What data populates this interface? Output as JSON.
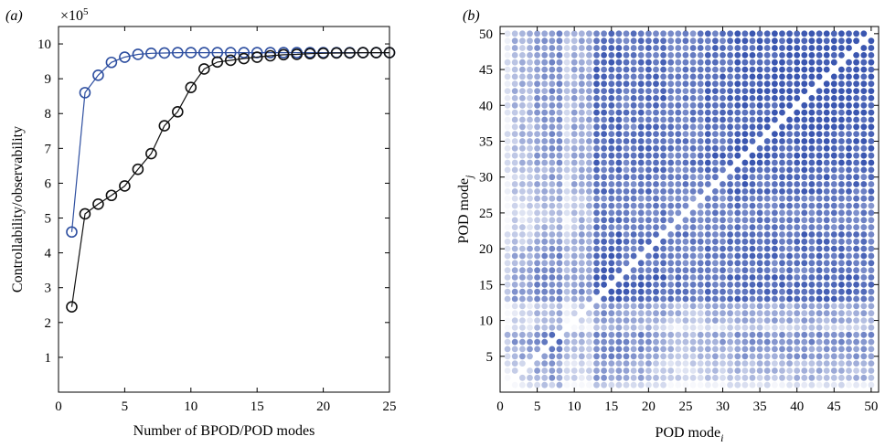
{
  "chart_data": [
    {
      "type": "line",
      "panel_label": "(a)",
      "exponent_label": "×10",
      "exponent_power": "5",
      "xlabel": "Number of BPOD/POD modes",
      "ylabel": "Controllability/observability",
      "xlim": [
        0,
        25
      ],
      "ylim": [
        0,
        10.5
      ],
      "xticks": [
        "0",
        "5",
        "10",
        "15",
        "20",
        "25"
      ],
      "xtick_values": [
        0,
        5,
        10,
        15,
        20,
        25
      ],
      "yticks": [
        "1",
        "2",
        "3",
        "4",
        "5",
        "6",
        "7",
        "8",
        "9",
        "10"
      ],
      "ytick_values": [
        1,
        2,
        3,
        4,
        5,
        6,
        7,
        8,
        9,
        10
      ],
      "grid": false,
      "series": [
        {
          "color": "#2e4fa0",
          "x": [
            1,
            2,
            3,
            4,
            5,
            6,
            7,
            8,
            9,
            10,
            11,
            12,
            13,
            14,
            15,
            16,
            17,
            18,
            19,
            20,
            21,
            22,
            23,
            24,
            25
          ],
          "y": [
            4.6,
            8.6,
            9.1,
            9.47,
            9.62,
            9.7,
            9.73,
            9.74,
            9.75,
            9.75,
            9.75,
            9.75,
            9.75,
            9.75,
            9.75,
            9.75,
            9.75,
            9.75,
            9.75,
            9.75,
            9.75,
            9.75,
            9.75,
            9.75,
            9.75
          ]
        },
        {
          "color": "#111111",
          "x": [
            1,
            2,
            3,
            4,
            5,
            6,
            7,
            8,
            9,
            10,
            11,
            12,
            13,
            14,
            15,
            16,
            17,
            18,
            19,
            20,
            21,
            22,
            23,
            24,
            25
          ],
          "y": [
            2.45,
            5.12,
            5.4,
            5.65,
            5.92,
            6.4,
            6.85,
            7.65,
            8.05,
            8.75,
            9.28,
            9.48,
            9.53,
            9.58,
            9.62,
            9.66,
            9.69,
            9.7,
            9.72,
            9.73,
            9.74,
            9.74,
            9.75,
            9.75,
            9.75
          ]
        }
      ]
    },
    {
      "type": "heatmap",
      "panel_label": "(b)",
      "xlabel": "POD mode",
      "xlabel_sub": "i",
      "ylabel": "POD mode",
      "ylabel_sub": "j",
      "xlim": [
        0,
        51
      ],
      "ylim": [
        0,
        51
      ],
      "xticks": [
        "0",
        "5",
        "10",
        "15",
        "20",
        "25",
        "30",
        "35",
        "40",
        "45",
        "50"
      ],
      "xtick_values": [
        0,
        5,
        10,
        15,
        20,
        25,
        30,
        35,
        40,
        45,
        50
      ],
      "yticks": [
        "5",
        "10",
        "15",
        "20",
        "25",
        "30",
        "35",
        "40",
        "45",
        "50"
      ],
      "ytick_values": [
        5,
        10,
        15,
        20,
        25,
        30,
        35,
        40,
        45,
        50
      ],
      "n": 50,
      "color": "#3a56b0",
      "diagonal": "empty",
      "notes": "Symmetric coupling matrix: intensity in [0,1] per (i,j) pair; diagonal blank."
    }
  ]
}
